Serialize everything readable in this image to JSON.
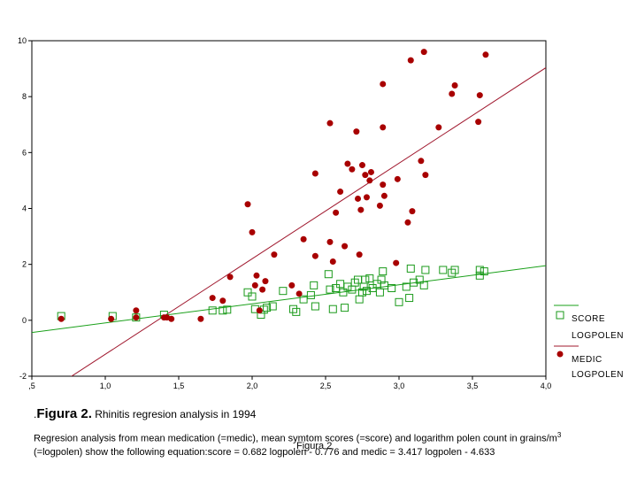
{
  "caption": {
    "prefix": ".",
    "figure": "Figura 2.",
    "text": " Rhinitis regresion analysis in 1994"
  },
  "description": {
    "before_super": "Regresion analysis from mean medication (=medic), mean symtom scores (=score) and logarithm polen count in grains/m",
    "super": "3",
    "after_super": " (=logpolen) show the following equation:score = 0.682 logpolen - 0.776 and medic = 3.417 logpolen - 4.633"
  },
  "overlay_label": "Figura 2",
  "legend": {
    "score_label": "SCORE",
    "score_sub": "LOGPOLEN",
    "medic_label": "MEDIC",
    "medic_sub": "LOGPOLEN"
  },
  "colors": {
    "score": "#1a9a1a",
    "medic": "#a80000",
    "score_line": "#1aa01a",
    "medic_line": "#a0182e"
  },
  "chart_data": {
    "type": "scatter",
    "xlim": [
      0.5,
      4.0
    ],
    "ylim": [
      -2,
      10
    ],
    "x_ticks": [
      ",5",
      "1,0",
      "1,5",
      "2,0",
      "2,5",
      "3,0",
      "3,5",
      "4,0"
    ],
    "y_ticks": [
      "-2",
      "0",
      "2",
      "4",
      "6",
      "8",
      "10"
    ],
    "series": [
      {
        "name": "SCORE",
        "marker": "open-square",
        "points": [
          [
            0.7,
            0.15
          ],
          [
            1.05,
            0.15
          ],
          [
            1.21,
            0.1
          ],
          [
            1.4,
            0.2
          ],
          [
            1.73,
            0.35
          ],
          [
            1.8,
            0.35
          ],
          [
            1.83,
            0.38
          ],
          [
            1.97,
            1.0
          ],
          [
            2.0,
            0.85
          ],
          [
            2.02,
            0.4
          ],
          [
            2.06,
            0.2
          ],
          [
            2.08,
            0.38
          ],
          [
            2.1,
            0.45
          ],
          [
            2.14,
            0.5
          ],
          [
            2.21,
            1.05
          ],
          [
            2.28,
            0.4
          ],
          [
            2.3,
            0.3
          ],
          [
            2.35,
            0.75
          ],
          [
            2.4,
            0.9
          ],
          [
            2.42,
            1.25
          ],
          [
            2.43,
            0.5
          ],
          [
            2.52,
            1.65
          ],
          [
            2.53,
            1.1
          ],
          [
            2.55,
            0.4
          ],
          [
            2.57,
            1.15
          ],
          [
            2.6,
            1.3
          ],
          [
            2.62,
            1.0
          ],
          [
            2.63,
            0.45
          ],
          [
            2.65,
            1.2
          ],
          [
            2.68,
            1.1
          ],
          [
            2.7,
            1.35
          ],
          [
            2.72,
            1.45
          ],
          [
            2.73,
            0.75
          ],
          [
            2.75,
            1.0
          ],
          [
            2.76,
            1.2
          ],
          [
            2.77,
            1.45
          ],
          [
            2.78,
            1.05
          ],
          [
            2.8,
            1.5
          ],
          [
            2.82,
            1.15
          ],
          [
            2.85,
            1.3
          ],
          [
            2.87,
            1.0
          ],
          [
            2.88,
            1.45
          ],
          [
            2.89,
            1.75
          ],
          [
            2.9,
            1.25
          ],
          [
            2.95,
            1.15
          ],
          [
            3.0,
            0.65
          ],
          [
            3.05,
            1.2
          ],
          [
            3.07,
            0.8
          ],
          [
            3.08,
            1.85
          ],
          [
            3.1,
            1.35
          ],
          [
            3.14,
            1.45
          ],
          [
            3.17,
            1.25
          ],
          [
            3.18,
            1.8
          ],
          [
            3.3,
            1.8
          ],
          [
            3.36,
            1.7
          ],
          [
            3.38,
            1.8
          ],
          [
            3.55,
            1.6
          ],
          [
            3.55,
            1.8
          ],
          [
            3.58,
            1.75
          ]
        ]
      },
      {
        "name": "MEDIC",
        "marker": "filled-dot",
        "points": [
          [
            0.7,
            0.05
          ],
          [
            1.04,
            0.05
          ],
          [
            1.21,
            0.35
          ],
          [
            1.21,
            0.1
          ],
          [
            1.4,
            0.1
          ],
          [
            1.42,
            0.1
          ],
          [
            1.45,
            0.05
          ],
          [
            1.65,
            0.05
          ],
          [
            1.73,
            0.8
          ],
          [
            1.8,
            0.7
          ],
          [
            1.85,
            1.55
          ],
          [
            1.97,
            4.15
          ],
          [
            2.0,
            3.15
          ],
          [
            2.02,
            1.25
          ],
          [
            2.03,
            1.6
          ],
          [
            2.05,
            0.35
          ],
          [
            2.07,
            1.1
          ],
          [
            2.09,
            1.4
          ],
          [
            2.15,
            2.35
          ],
          [
            2.27,
            1.25
          ],
          [
            2.32,
            0.95
          ],
          [
            2.35,
            2.9
          ],
          [
            2.43,
            5.25
          ],
          [
            2.43,
            2.3
          ],
          [
            2.53,
            7.05
          ],
          [
            2.53,
            2.8
          ],
          [
            2.55,
            2.1
          ],
          [
            2.57,
            3.85
          ],
          [
            2.6,
            4.6
          ],
          [
            2.63,
            2.65
          ],
          [
            2.65,
            5.6
          ],
          [
            2.68,
            5.4
          ],
          [
            2.71,
            6.75
          ],
          [
            2.72,
            4.35
          ],
          [
            2.73,
            2.35
          ],
          [
            2.74,
            3.95
          ],
          [
            2.75,
            5.55
          ],
          [
            2.77,
            5.2
          ],
          [
            2.78,
            4.4
          ],
          [
            2.8,
            5.0
          ],
          [
            2.81,
            5.3
          ],
          [
            2.87,
            4.1
          ],
          [
            2.89,
            8.45
          ],
          [
            2.89,
            6.9
          ],
          [
            2.89,
            4.85
          ],
          [
            2.9,
            4.45
          ],
          [
            2.98,
            2.05
          ],
          [
            2.99,
            5.05
          ],
          [
            3.06,
            3.5
          ],
          [
            3.08,
            9.3
          ],
          [
            3.09,
            3.9
          ],
          [
            3.15,
            5.7
          ],
          [
            3.17,
            9.6
          ],
          [
            3.18,
            5.2
          ],
          [
            3.27,
            6.9
          ],
          [
            3.36,
            8.1
          ],
          [
            3.38,
            8.4
          ],
          [
            3.54,
            7.1
          ],
          [
            3.55,
            8.05
          ],
          [
            3.59,
            9.5
          ]
        ]
      }
    ],
    "fit_lines": [
      {
        "name": "SCORE",
        "slope": 0.682,
        "intercept": -0.776
      },
      {
        "name": "MEDIC",
        "slope": 3.417,
        "intercept": -4.633
      }
    ]
  }
}
